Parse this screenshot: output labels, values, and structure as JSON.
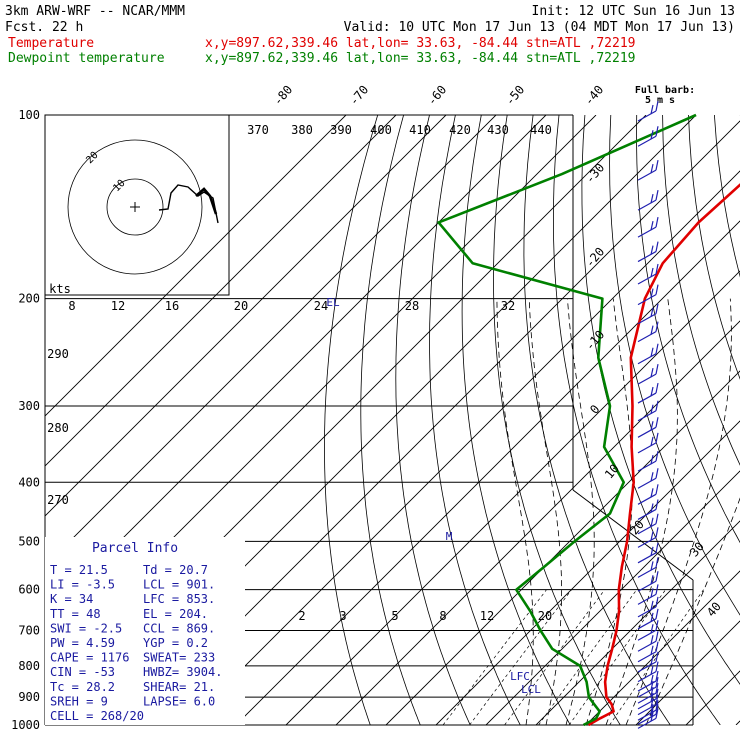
{
  "header": {
    "model": "3km ARW-WRF -- NCAR/MMM",
    "init": "Init: 12 UTC Sun 16 Jun 13",
    "fcst": "Fcst.    22 h",
    "valid": "Valid: 10 UTC Mon 17 Jun 13 (04 MDT Mon 17 Jun 13)"
  },
  "legend": [
    {
      "label": "Temperature",
      "info": "x,y=897.62,339.46   lat,lon= 33.63, -84.44   stn=ATL ,72219",
      "color": "#e00000"
    },
    {
      "label": "Dewpoint temperature",
      "info": "x,y=897.62,339.46   lat,lon= 33.63, -84.44   stn=ATL ,72219",
      "color": "#008000"
    }
  ],
  "full_barb_label": [
    "Full barb:",
    "5 m s"
  ],
  "hodograph": {
    "units": "kts",
    "ring_labels": [
      "10",
      "20"
    ]
  },
  "parcel_info": {
    "title": "Parcel Info",
    "rows": [
      [
        "T  =    21.5",
        "Td =  20.7"
      ],
      [
        "LI =    -3.5",
        "LCL =  901."
      ],
      [
        "K  =      34",
        "LFC =  853."
      ],
      [
        "TT =      48",
        "EL  =  204."
      ],
      [
        "SWI =   -2.5",
        "CCL =  869."
      ],
      [
        "PW =    4.59",
        "YGP =   0.2"
      ],
      [
        "CAPE =  1176",
        "SWEAT=  233"
      ],
      [
        "CIN =    -53",
        "HWBZ= 3904."
      ],
      [
        "Tc =    28.2",
        "SHEAR=  21."
      ],
      [
        "SREH =     9",
        "LAPSE=  6.0"
      ],
      [
        "CELL = 268/20",
        ""
      ]
    ]
  },
  "chart_data": {
    "type": "line",
    "title": "",
    "y_axis": "pressure (hPa), log scale",
    "pressure_levels": [
      100,
      200,
      300,
      400,
      500,
      600,
      700,
      800,
      900,
      1000
    ],
    "pressure_range": [
      100,
      1000
    ],
    "skewed_isotherm_labels": [
      -80,
      -70,
      -60,
      -50,
      -40,
      -30,
      -20,
      -10,
      0,
      10,
      20,
      30,
      40
    ],
    "theta_labels": [
      270,
      280,
      290,
      370,
      380,
      390,
      400,
      410,
      420,
      430,
      440
    ],
    "mixing_ratio_labels": [
      2,
      3,
      5,
      8,
      12,
      20
    ],
    "hodo_speed_labels": [
      8,
      12,
      16,
      20,
      24,
      28,
      32
    ],
    "level_markers": [
      "EL",
      "M",
      "LFC",
      "LCL"
    ],
    "series": [
      {
        "name": "Temperature",
        "color": "#e00000",
        "points": [
          [
            1000,
            20.5
          ],
          [
            975,
            21.5
          ],
          [
            950,
            22.8
          ],
          [
            925,
            21.0
          ],
          [
            900,
            18.5
          ],
          [
            850,
            15.2
          ],
          [
            800,
            12.5
          ],
          [
            750,
            10.0
          ],
          [
            700,
            7.2
          ],
          [
            650,
            3.8
          ],
          [
            600,
            -0.5
          ],
          [
            550,
            -4.5
          ],
          [
            500,
            -8.5
          ],
          [
            450,
            -13.5
          ],
          [
            400,
            -19.0
          ],
          [
            350,
            -26.5
          ],
          [
            300,
            -34.5
          ],
          [
            250,
            -44.5
          ],
          [
            200,
            -53.5
          ],
          [
            175,
            -57.0
          ],
          [
            150,
            -58.0
          ],
          [
            125,
            -57.0
          ],
          [
            100,
            -54.0
          ]
        ]
      },
      {
        "name": "Dewpoint temperature",
        "color": "#008000",
        "points": [
          [
            1000,
            19.5
          ],
          [
            975,
            20.7
          ],
          [
            950,
            20.0
          ],
          [
            925,
            17.5
          ],
          [
            900,
            15.0
          ],
          [
            850,
            11.5
          ],
          [
            800,
            7.0
          ],
          [
            750,
            -2.0
          ],
          [
            700,
            -8.0
          ],
          [
            650,
            -14.0
          ],
          [
            600,
            -21.0
          ],
          [
            550,
            -20.0
          ],
          [
            500,
            -19.0
          ],
          [
            450,
            -17.5
          ],
          [
            400,
            -21.0
          ],
          [
            350,
            -32.0
          ],
          [
            300,
            -39.0
          ],
          [
            250,
            -51.0
          ],
          [
            200,
            -62.0
          ],
          [
            175,
            -95.0
          ],
          [
            150,
            -110.0
          ],
          [
            125,
            -95.0
          ],
          [
            100,
            -80.0
          ]
        ]
      }
    ],
    "wind_levels": [
      100,
      110,
      125,
      140,
      155,
      170,
      185,
      200,
      215,
      230,
      250,
      270,
      290,
      310,
      330,
      350,
      375,
      400,
      425,
      450,
      475,
      500,
      530,
      560,
      590,
      620,
      650,
      680,
      710,
      740,
      770,
      800,
      830,
      860,
      880,
      900,
      920,
      940,
      960,
      975,
      990
    ]
  }
}
